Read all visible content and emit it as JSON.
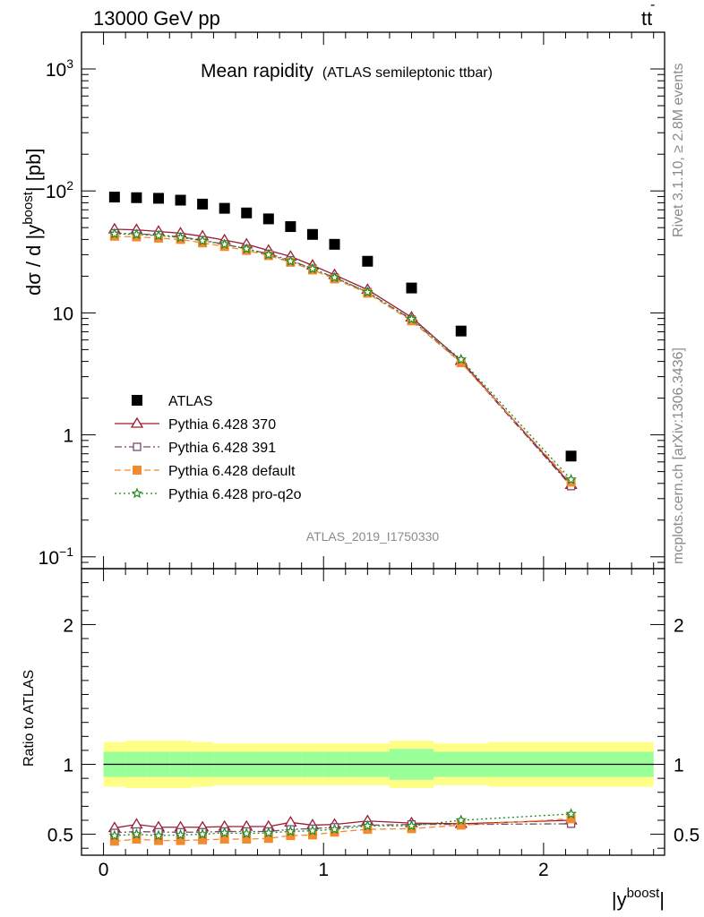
{
  "header": {
    "left": "13000 GeV pp",
    "right_main": "tt",
    "right_bar": "-"
  },
  "side": {
    "rivet": "Rivet 3.1.10, ≥ 2.8M events",
    "mcplots": "mcplots.cern.ch [arXiv:1306.3436]"
  },
  "chart_data": {
    "type": "scatter",
    "title": "Mean rapidity",
    "subtitle": "(ATLAS semileptonic ttbar)",
    "watermark": "ATLAS_2019_I1750330",
    "xlabel_base": "|y",
    "xlabel_sup": "boost",
    "xlabel_end": "|",
    "ylabel_base": "dσ / d |y",
    "ylabel_sup": "boost",
    "ylabel_end": "| [pb]",
    "ratio_ylabel": "Ratio to ATLAS",
    "xlim": [
      -0.1,
      2.55
    ],
    "ylim_main": [
      0.08,
      2000
    ],
    "yscale_main": "log",
    "ylim_ratio": [
      0.35,
      2.4
    ],
    "x_ticks": [
      "0",
      "1",
      "2"
    ],
    "y_ticks_main": [
      {
        "v": 1000,
        "base": "10",
        "exp": "3"
      },
      {
        "v": 100,
        "base": "10",
        "exp": "2"
      },
      {
        "v": 10,
        "base": "10",
        "exp": ""
      },
      {
        "v": 1,
        "base": "1",
        "exp": ""
      },
      {
        "v": 0.1,
        "base": "10",
        "exp": "−1"
      }
    ],
    "y_ticks_ratio": [
      "0.5",
      "1",
      "2"
    ],
    "bin_edges": [
      0,
      0.1,
      0.2,
      0.3,
      0.4,
      0.5,
      0.6,
      0.7,
      0.8,
      0.9,
      1.0,
      1.1,
      1.3,
      1.5,
      1.75,
      2.5
    ],
    "x": [
      0.05,
      0.15,
      0.25,
      0.35,
      0.45,
      0.55,
      0.65,
      0.75,
      0.85,
      0.95,
      1.05,
      1.2,
      1.4,
      1.625,
      2.125
    ],
    "band_inner": [
      0.09,
      0.09,
      0.09,
      0.09,
      0.09,
      0.09,
      0.09,
      0.09,
      0.09,
      0.09,
      0.09,
      0.09,
      0.11,
      0.09,
      0.09
    ],
    "band_outer": [
      0.16,
      0.17,
      0.17,
      0.17,
      0.16,
      0.15,
      0.15,
      0.15,
      0.15,
      0.15,
      0.15,
      0.15,
      0.17,
      0.15,
      0.16
    ],
    "legend_position": "left-middle",
    "series": [
      {
        "name": "ATLAS",
        "marker": "square-filled",
        "color": "#000000",
        "line": "none",
        "values": [
          89,
          88,
          87,
          84,
          78,
          72,
          66,
          59,
          51,
          44,
          36.5,
          26.5,
          16,
          7.1,
          0.67
        ]
      },
      {
        "name": "Pythia 6.428 370",
        "marker": "triangle-open",
        "color": "#9b1c31",
        "line": "solid",
        "values": [
          48.5,
          48,
          46.5,
          45,
          42.5,
          39.5,
          36.5,
          32.5,
          29,
          24.5,
          20.5,
          15.5,
          9.2,
          4.05,
          0.39
        ],
        "ratio": [
          0.545,
          0.57,
          0.55,
          0.55,
          0.55,
          0.555,
          0.555,
          0.555,
          0.585,
          0.565,
          0.57,
          0.595,
          0.58,
          0.575,
          0.6
        ]
      },
      {
        "name": "Pythia 6.428 391",
        "marker": "square-open",
        "color": "#7a4a6a",
        "line": "dashdot",
        "values": [
          45,
          44.5,
          43.5,
          42,
          39.5,
          36.5,
          33.5,
          30.5,
          27,
          23,
          19.5,
          14.8,
          8.8,
          3.95,
          0.38
        ],
        "ratio": [
          0.51,
          0.52,
          0.515,
          0.515,
          0.515,
          0.52,
          0.52,
          0.52,
          0.535,
          0.54,
          0.55,
          0.565,
          0.57,
          0.57,
          0.575
        ]
      },
      {
        "name": "Pythia 6.428 default",
        "marker": "square-filled",
        "color": "#f28a30",
        "line": "dashed",
        "values": [
          42.5,
          42,
          41,
          40,
          37.5,
          35,
          32.5,
          29.5,
          26,
          22.5,
          19,
          14.5,
          8.6,
          3.9,
          0.41
        ],
        "ratio": [
          0.45,
          0.465,
          0.455,
          0.455,
          0.46,
          0.465,
          0.465,
          0.47,
          0.49,
          0.495,
          0.515,
          0.535,
          0.54,
          0.565,
          0.61
        ]
      },
      {
        "name": "Pythia 6.428 pro-q2o",
        "marker": "star-open",
        "color": "#1f8a1f",
        "line": "dotted",
        "values": [
          44.5,
          44,
          43,
          41.5,
          39,
          36.5,
          33.5,
          30,
          26.5,
          23,
          19.5,
          14.8,
          8.9,
          4.15,
          0.43
        ],
        "ratio": [
          0.49,
          0.5,
          0.49,
          0.495,
          0.5,
          0.51,
          0.505,
          0.51,
          0.52,
          0.525,
          0.535,
          0.56,
          0.56,
          0.6,
          0.645
        ]
      }
    ]
  },
  "colors": {
    "band_inner": "#99ff99",
    "band_outer": "#ffff88",
    "text_grey": "#8a8a8a"
  }
}
